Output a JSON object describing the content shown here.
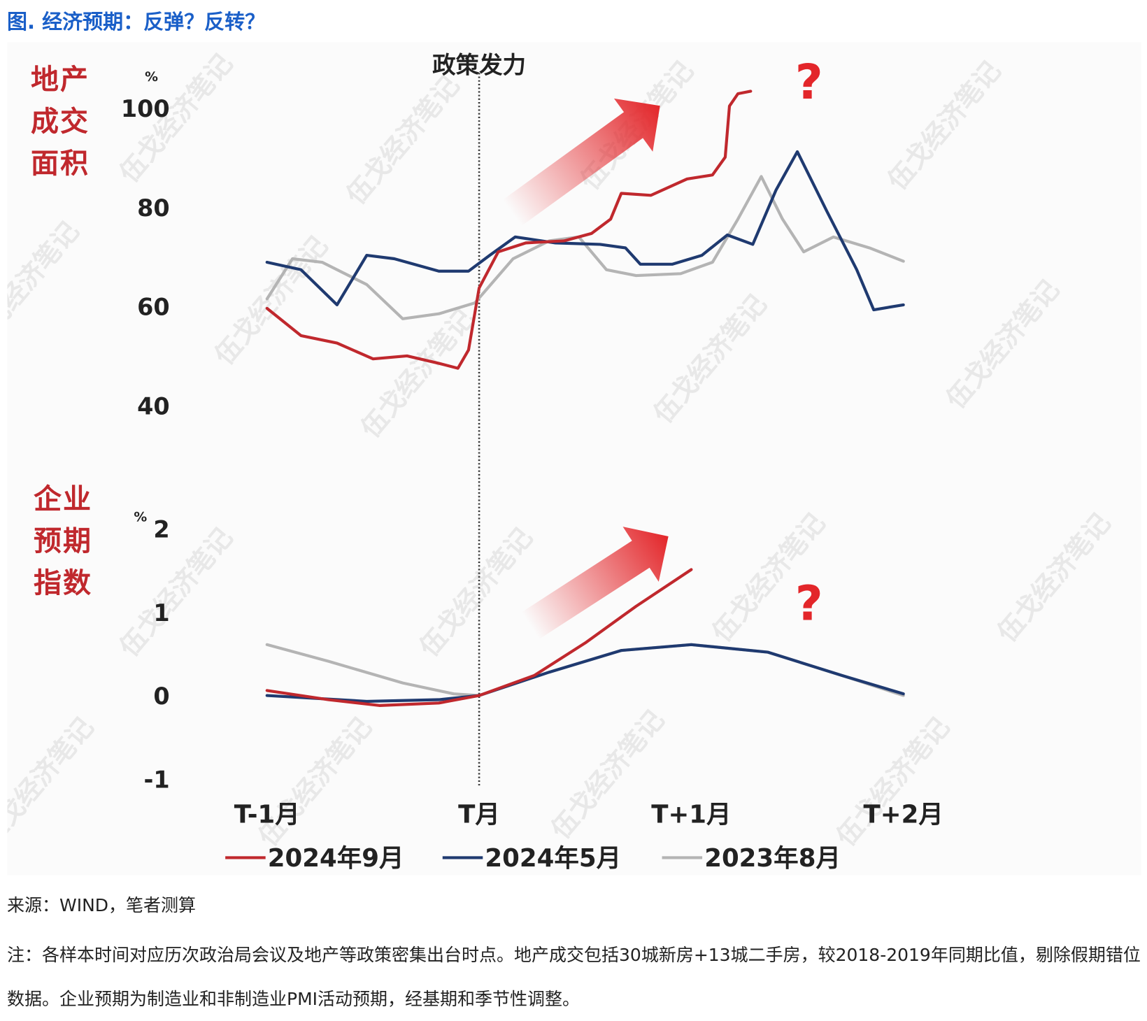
{
  "title": "图. 经济预期：反弹？反转？",
  "watermark": "伍戈经济笔记",
  "chart_data": [
    {
      "type": "line",
      "ylabel": "地产成交面积",
      "unit": "%",
      "annotation": "?",
      "vline": {
        "x": 0,
        "label": "政策发力"
      },
      "xlim": [
        -1,
        2
      ],
      "ylim": [
        40,
        104
      ],
      "yticks": [
        40,
        60,
        80,
        100
      ],
      "series": [
        {
          "name": "2024年9月",
          "color": "#c0282d",
          "x": [
            -1,
            -0.84,
            -0.67,
            -0.5,
            -0.34,
            -0.19,
            -0.1,
            -0.05,
            0,
            0.09,
            0.22,
            0.4,
            0.53,
            0.62,
            0.67,
            0.81,
            0.98,
            1.1,
            1.16,
            1.18,
            1.22,
            1.28
          ],
          "values": [
            59.6,
            54.1,
            52.6,
            49.4,
            50,
            48.5,
            47.5,
            51.2,
            63.7,
            71,
            72.8,
            73.2,
            74.7,
            77.6,
            82.8,
            82.4,
            85.7,
            86.5,
            90.1,
            100.4,
            102.9,
            103.4
          ]
        },
        {
          "name": "2024年5月",
          "color": "#1f3a70",
          "x": [
            -1,
            -0.84,
            -0.67,
            -0.53,
            -0.4,
            -0.19,
            -0.05,
            0.05,
            0.17,
            0.36,
            0.57,
            0.69,
            0.76,
            0.91,
            1.05,
            1.17,
            1.29,
            1.4,
            1.5,
            1.64,
            1.78,
            1.86,
            2
          ],
          "values": [
            68.9,
            67.4,
            60.3,
            70.3,
            69.6,
            67.1,
            67.1,
            70.3,
            74,
            72.8,
            72.5,
            71.8,
            68.5,
            68.5,
            70.3,
            74.4,
            72.5,
            83.5,
            91.2,
            79.1,
            67.4,
            59.3,
            60.3
          ]
        },
        {
          "name": "2023年8月",
          "color": "#b4b4b4",
          "x": [
            -1,
            -0.88,
            -0.74,
            -0.53,
            -0.36,
            -0.19,
            -0.02,
            0.16,
            0.33,
            0.47,
            0.6,
            0.74,
            0.95,
            1.1,
            1.22,
            1.33,
            1.43,
            1.53,
            1.67,
            1.84,
            2
          ],
          "values": [
            61.5,
            69.6,
            68.9,
            64.4,
            57.5,
            58.5,
            60.7,
            69.6,
            73.2,
            74,
            67.4,
            66.2,
            66.6,
            68.9,
            77.6,
            86.2,
            77.6,
            71,
            74,
            71.8,
            69.1
          ]
        }
      ]
    },
    {
      "type": "line",
      "ylabel": "企业预期指数",
      "unit": "%",
      "annotation": "?",
      "xlim": [
        -1,
        2
      ],
      "ylim": [
        -1,
        2
      ],
      "yticks": [
        -1,
        0,
        1,
        2
      ],
      "xticks": [
        {
          "value": -1,
          "label": "T-1月"
        },
        {
          "value": 0,
          "label": "T月"
        },
        {
          "value": 1,
          "label": "T+1月"
        },
        {
          "value": 2,
          "label": "T+2月"
        }
      ],
      "series": [
        {
          "color": "#c0282d",
          "x": [
            -1,
            -0.71,
            -0.47,
            -0.19,
            0,
            0.26,
            0.5,
            0.74,
            1
          ],
          "values": [
            0.06,
            -0.05,
            -0.12,
            -0.09,
            0,
            0.24,
            0.63,
            1.07,
            1.51
          ]
        },
        {
          "color": "#1f3a70",
          "x": [
            -1,
            -0.53,
            -0.19,
            0,
            0.33,
            0.67,
            1,
            1.36,
            1.71,
            2
          ],
          "values": [
            0,
            -0.07,
            -0.05,
            0,
            0.28,
            0.54,
            0.61,
            0.52,
            0.24,
            0.02
          ]
        },
        {
          "color": "#b4b4b4",
          "x": [
            -1,
            -0.71,
            -0.36,
            -0.12,
            0,
            0.33,
            0.67,
            1,
            1.36,
            1.71,
            2
          ],
          "values": [
            0.61,
            0.41,
            0.15,
            0.02,
            0,
            0.28,
            0.54,
            0.61,
            0.52,
            0.24,
            0
          ]
        }
      ]
    }
  ],
  "source": "来源：WIND，笔者测算",
  "note": "注：各样本时间对应历次政治局会议及地产等政策密集出台时点。地产成交包括30城新房+13城二手房，较2018-2019年同期比值，剔除假期错位数据。企业预期为制造业和非制造业PMI活动预期，经基期和季节性调整。"
}
